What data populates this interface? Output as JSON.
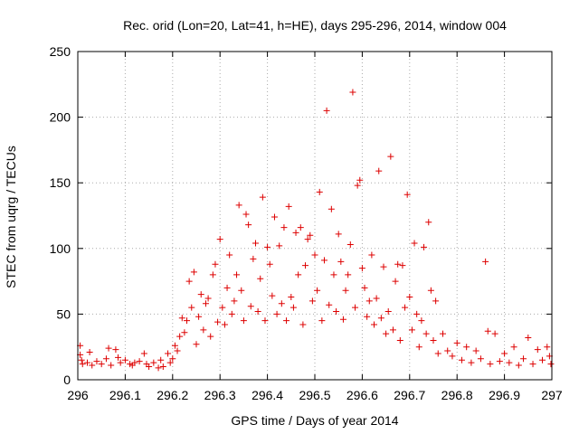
{
  "chart_data": {
    "type": "scatter",
    "title": "Rec. orid (Lon=20, Lat=41, h=HE), days 295-296, 2014, window 004",
    "xlabel": "GPS time / Days of year 2014",
    "ylabel": "STEC from uqrg / TECUs",
    "xlim": [
      296,
      297
    ],
    "ylim": [
      0,
      250
    ],
    "xticks": [
      "296",
      "296.1",
      "296.2",
      "296.3",
      "296.4",
      "296.5",
      "296.6",
      "296.7",
      "296.8",
      "296.9",
      "297"
    ],
    "yticks": [
      "0",
      "50",
      "100",
      "150",
      "200",
      "250"
    ],
    "grid": true,
    "legend": "none",
    "marker": "plus",
    "marker_color": "#dd0000",
    "series": [
      {
        "points": [
          [
            296.005,
            26
          ],
          [
            296.005,
            19
          ],
          [
            296.008,
            15
          ],
          [
            296.01,
            12
          ],
          [
            296.02,
            13
          ],
          [
            296.025,
            21
          ],
          [
            296.03,
            11
          ],
          [
            296.04,
            14
          ],
          [
            296.05,
            12
          ],
          [
            296.06,
            16
          ],
          [
            296.065,
            24
          ],
          [
            296.07,
            11
          ],
          [
            296.08,
            23
          ],
          [
            296.085,
            17
          ],
          [
            296.09,
            13
          ],
          [
            296.1,
            15
          ],
          [
            296.11,
            12
          ],
          [
            296.115,
            11
          ],
          [
            296.12,
            13
          ],
          [
            296.13,
            14
          ],
          [
            296.14,
            20
          ],
          [
            296.145,
            12
          ],
          [
            296.15,
            10
          ],
          [
            296.16,
            13
          ],
          [
            296.17,
            9
          ],
          [
            296.175,
            15
          ],
          [
            296.18,
            10
          ],
          [
            296.19,
            20
          ],
          [
            296.195,
            13
          ],
          [
            296.2,
            16
          ],
          [
            296.205,
            26
          ],
          [
            296.21,
            22
          ],
          [
            296.215,
            33
          ],
          [
            296.22,
            47
          ],
          [
            296.225,
            36
          ],
          [
            296.23,
            45
          ],
          [
            296.235,
            75
          ],
          [
            296.24,
            55
          ],
          [
            296.245,
            82
          ],
          [
            296.25,
            27
          ],
          [
            296.255,
            48
          ],
          [
            296.26,
            65
          ],
          [
            296.265,
            38
          ],
          [
            296.27,
            58
          ],
          [
            296.275,
            62
          ],
          [
            296.28,
            33
          ],
          [
            296.285,
            80
          ],
          [
            296.29,
            88
          ],
          [
            296.295,
            44
          ],
          [
            296.3,
            107
          ],
          [
            296.305,
            55
          ],
          [
            296.31,
            42
          ],
          [
            296.315,
            70
          ],
          [
            296.32,
            95
          ],
          [
            296.325,
            50
          ],
          [
            296.33,
            60
          ],
          [
            296.335,
            80
          ],
          [
            296.34,
            133
          ],
          [
            296.345,
            68
          ],
          [
            296.35,
            45
          ],
          [
            296.355,
            126
          ],
          [
            296.36,
            118
          ],
          [
            296.365,
            56
          ],
          [
            296.37,
            92
          ],
          [
            296.375,
            104
          ],
          [
            296.38,
            52
          ],
          [
            296.385,
            77
          ],
          [
            296.39,
            139
          ],
          [
            296.395,
            45
          ],
          [
            296.4,
            101
          ],
          [
            296.405,
            88
          ],
          [
            296.41,
            64
          ],
          [
            296.415,
            124
          ],
          [
            296.42,
            50
          ],
          [
            296.425,
            102
          ],
          [
            296.43,
            58
          ],
          [
            296.435,
            116
          ],
          [
            296.44,
            45
          ],
          [
            296.445,
            132
          ],
          [
            296.45,
            63
          ],
          [
            296.455,
            55
          ],
          [
            296.46,
            112
          ],
          [
            296.465,
            80
          ],
          [
            296.47,
            116
          ],
          [
            296.475,
            42
          ],
          [
            296.48,
            87
          ],
          [
            296.485,
            107
          ],
          [
            296.49,
            110
          ],
          [
            296.495,
            60
          ],
          [
            296.5,
            95
          ],
          [
            296.505,
            68
          ],
          [
            296.51,
            143
          ],
          [
            296.515,
            45
          ],
          [
            296.52,
            91
          ],
          [
            296.525,
            205
          ],
          [
            296.53,
            57
          ],
          [
            296.535,
            130
          ],
          [
            296.54,
            80
          ],
          [
            296.545,
            52
          ],
          [
            296.55,
            111
          ],
          [
            296.555,
            90
          ],
          [
            296.56,
            46
          ],
          [
            296.565,
            68
          ],
          [
            296.57,
            80
          ],
          [
            296.575,
            103
          ],
          [
            296.58,
            219
          ],
          [
            296.585,
            55
          ],
          [
            296.59,
            148
          ],
          [
            296.595,
            152
          ],
          [
            296.6,
            85
          ],
          [
            296.605,
            70
          ],
          [
            296.61,
            48
          ],
          [
            296.615,
            60
          ],
          [
            296.62,
            95
          ],
          [
            296.625,
            42
          ],
          [
            296.63,
            62
          ],
          [
            296.635,
            159
          ],
          [
            296.64,
            47
          ],
          [
            296.645,
            86
          ],
          [
            296.65,
            35
          ],
          [
            296.655,
            52
          ],
          [
            296.66,
            170
          ],
          [
            296.665,
            38
          ],
          [
            296.67,
            75
          ],
          [
            296.675,
            88
          ],
          [
            296.68,
            30
          ],
          [
            296.685,
            87
          ],
          [
            296.69,
            55
          ],
          [
            296.695,
            141
          ],
          [
            296.7,
            63
          ],
          [
            296.705,
            38
          ],
          [
            296.71,
            104
          ],
          [
            296.715,
            50
          ],
          [
            296.72,
            25
          ],
          [
            296.725,
            45
          ],
          [
            296.73,
            101
          ],
          [
            296.735,
            35
          ],
          [
            296.74,
            120
          ],
          [
            296.745,
            68
          ],
          [
            296.75,
            30
          ],
          [
            296.755,
            60
          ],
          [
            296.76,
            20
          ],
          [
            296.77,
            35
          ],
          [
            296.78,
            22
          ],
          [
            296.79,
            18
          ],
          [
            296.8,
            28
          ],
          [
            296.81,
            15
          ],
          [
            296.82,
            25
          ],
          [
            296.83,
            13
          ],
          [
            296.84,
            22
          ],
          [
            296.85,
            16
          ],
          [
            296.86,
            90
          ],
          [
            296.865,
            37
          ],
          [
            296.87,
            12
          ],
          [
            296.88,
            35
          ],
          [
            296.89,
            14
          ],
          [
            296.9,
            20
          ],
          [
            296.91,
            13
          ],
          [
            296.92,
            25
          ],
          [
            296.93,
            11
          ],
          [
            296.94,
            16
          ],
          [
            296.95,
            32
          ],
          [
            296.96,
            12
          ],
          [
            296.97,
            23
          ],
          [
            296.98,
            15
          ],
          [
            296.99,
            25
          ],
          [
            296.995,
            18
          ],
          [
            296.998,
            12
          ]
        ]
      }
    ]
  }
}
